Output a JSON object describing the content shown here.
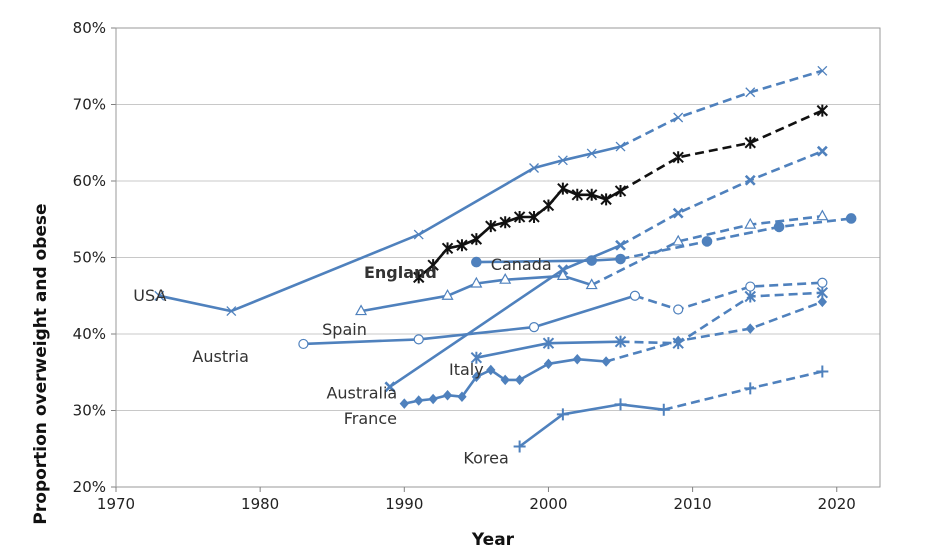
{
  "chart_data": {
    "type": "line",
    "title": "",
    "xlabel": "Year",
    "ylabel": "Proportion overweight and obese",
    "xlim": [
      1970,
      2023
    ],
    "ylim": [
      0.2,
      0.8
    ],
    "x_ticks": [
      1970,
      1980,
      1990,
      2000,
      2010,
      2020
    ],
    "y_ticks": [
      0.2,
      0.3,
      0.4,
      0.5,
      0.6,
      0.7,
      0.8
    ],
    "x_tick_labels": [
      "1970",
      "1980",
      "1990",
      "2000",
      "2010",
      "2020"
    ],
    "y_tick_labels": [
      "20%",
      "30%",
      "40%",
      "50%",
      "60%",
      "70%",
      "80%"
    ],
    "grid": "horizontal",
    "legend": "none (series labelled directly on the plot)",
    "line_style": "solid for observed data, dashed for projections",
    "series": [
      {
        "name": "USA",
        "color": "#4F81BD",
        "marker": "x",
        "observed": [
          [
            1973,
            0.45
          ],
          [
            1978,
            0.43
          ],
          [
            1991,
            0.53
          ],
          [
            1999,
            0.617
          ],
          [
            2001,
            0.627
          ],
          [
            2003,
            0.636
          ],
          [
            2005,
            0.645
          ]
        ],
        "projected": [
          [
            2005,
            0.645
          ],
          [
            2009,
            0.683
          ],
          [
            2014,
            0.716
          ],
          [
            2019,
            0.744
          ]
        ]
      },
      {
        "name": "England",
        "color": "#111111",
        "marker": "asterisk",
        "observed": [
          [
            1991,
            0.474
          ],
          [
            1992,
            0.49
          ],
          [
            1993,
            0.512
          ],
          [
            1994,
            0.516
          ],
          [
            1995,
            0.524
          ],
          [
            1996,
            0.541
          ],
          [
            1997,
            0.546
          ],
          [
            1998,
            0.553
          ],
          [
            1999,
            0.553
          ],
          [
            2000,
            0.568
          ],
          [
            2001,
            0.59
          ],
          [
            2002,
            0.582
          ],
          [
            2003,
            0.582
          ],
          [
            2004,
            0.576
          ],
          [
            2005,
            0.587
          ]
        ],
        "projected": [
          [
            2005,
            0.587
          ],
          [
            2009,
            0.631
          ],
          [
            2014,
            0.65
          ],
          [
            2019,
            0.692
          ]
        ]
      },
      {
        "name": "Canada",
        "color": "#4F81BD",
        "marker": "circle-filled",
        "observed": [
          [
            1995,
            0.494
          ],
          [
            2003,
            0.496
          ],
          [
            2005,
            0.498
          ]
        ],
        "projected": [
          [
            2005,
            0.498
          ],
          [
            2011,
            0.521
          ],
          [
            2016,
            0.54
          ],
          [
            2021,
            0.551
          ]
        ]
      },
      {
        "name": "Australia",
        "color": "#4F81BD",
        "marker": "x-bold",
        "observed": [
          [
            1989,
            0.331
          ],
          [
            2001,
            0.484
          ],
          [
            2005,
            0.516
          ]
        ],
        "projected": [
          [
            2005,
            0.516
          ],
          [
            2009,
            0.558
          ],
          [
            2014,
            0.601
          ],
          [
            2019,
            0.639
          ]
        ]
      },
      {
        "name": "Spain",
        "color": "#4F81BD",
        "marker": "triangle-open",
        "observed": [
          [
            1987,
            0.43
          ],
          [
            1993,
            0.45
          ],
          [
            1995,
            0.466
          ],
          [
            1997,
            0.471
          ],
          [
            2001,
            0.476
          ],
          [
            2003,
            0.464
          ]
        ],
        "projected": [
          [
            2003,
            0.464
          ],
          [
            2009,
            0.521
          ],
          [
            2014,
            0.543
          ],
          [
            2019,
            0.554
          ]
        ]
      },
      {
        "name": "Austria",
        "color": "#4F81BD",
        "marker": "circle-open",
        "observed": [
          [
            1983,
            0.387
          ],
          [
            1991,
            0.393
          ],
          [
            1999,
            0.409
          ],
          [
            2006,
            0.45
          ]
        ],
        "projected": [
          [
            2006,
            0.45
          ],
          [
            2009,
            0.432
          ],
          [
            2014,
            0.462
          ],
          [
            2019,
            0.467
          ]
        ]
      },
      {
        "name": "Italy",
        "color": "#4F81BD",
        "marker": "asterisk",
        "observed": [
          [
            1995,
            0.369
          ],
          [
            2000,
            0.388
          ],
          [
            2005,
            0.39
          ]
        ],
        "projected": [
          [
            2005,
            0.39
          ],
          [
            2009,
            0.388
          ],
          [
            2014,
            0.449
          ],
          [
            2019,
            0.454
          ]
        ]
      },
      {
        "name": "France",
        "color": "#4F81BD",
        "marker": "diamond-filled",
        "observed": [
          [
            1990,
            0.309
          ],
          [
            1991,
            0.313
          ],
          [
            1992,
            0.315
          ],
          [
            1993,
            0.32
          ],
          [
            1994,
            0.318
          ],
          [
            1995,
            0.344
          ],
          [
            1996,
            0.353
          ],
          [
            1997,
            0.34
          ],
          [
            1998,
            0.34
          ],
          [
            2000,
            0.361
          ],
          [
            2002,
            0.367
          ],
          [
            2004,
            0.364
          ]
        ],
        "projected": [
          [
            2004,
            0.364
          ],
          [
            2009,
            0.391
          ],
          [
            2014,
            0.407
          ],
          [
            2019,
            0.442
          ]
        ]
      },
      {
        "name": "Korea",
        "color": "#4F81BD",
        "marker": "plus",
        "observed": [
          [
            1998,
            0.253
          ],
          [
            2001,
            0.295
          ],
          [
            2005,
            0.308
          ],
          [
            2008,
            0.301
          ]
        ],
        "projected": [
          [
            2008,
            0.301
          ],
          [
            2014,
            0.329
          ],
          [
            2019,
            0.351
          ]
        ]
      }
    ],
    "series_labels": [
      {
        "text": "USA",
        "x": 1971.2,
        "y": 0.45,
        "bold": false
      },
      {
        "text": "England",
        "x": 1987.2,
        "y": 0.48,
        "bold": true
      },
      {
        "text": "Canada",
        "x": 1996.0,
        "y": 0.49,
        "bold": false
      },
      {
        "text": "Spain",
        "x": 1984.3,
        "y": 0.405,
        "bold": false
      },
      {
        "text": "Austria",
        "x": 1975.3,
        "y": 0.37,
        "bold": false
      },
      {
        "text": "Italy",
        "x": 1993.1,
        "y": 0.353,
        "bold": false
      },
      {
        "text": "Australia",
        "x": 1984.6,
        "y": 0.322,
        "bold": false
      },
      {
        "text": "France",
        "x": 1985.8,
        "y": 0.289,
        "bold": false
      },
      {
        "text": "Korea",
        "x": 1994.1,
        "y": 0.237,
        "bold": false
      }
    ]
  }
}
